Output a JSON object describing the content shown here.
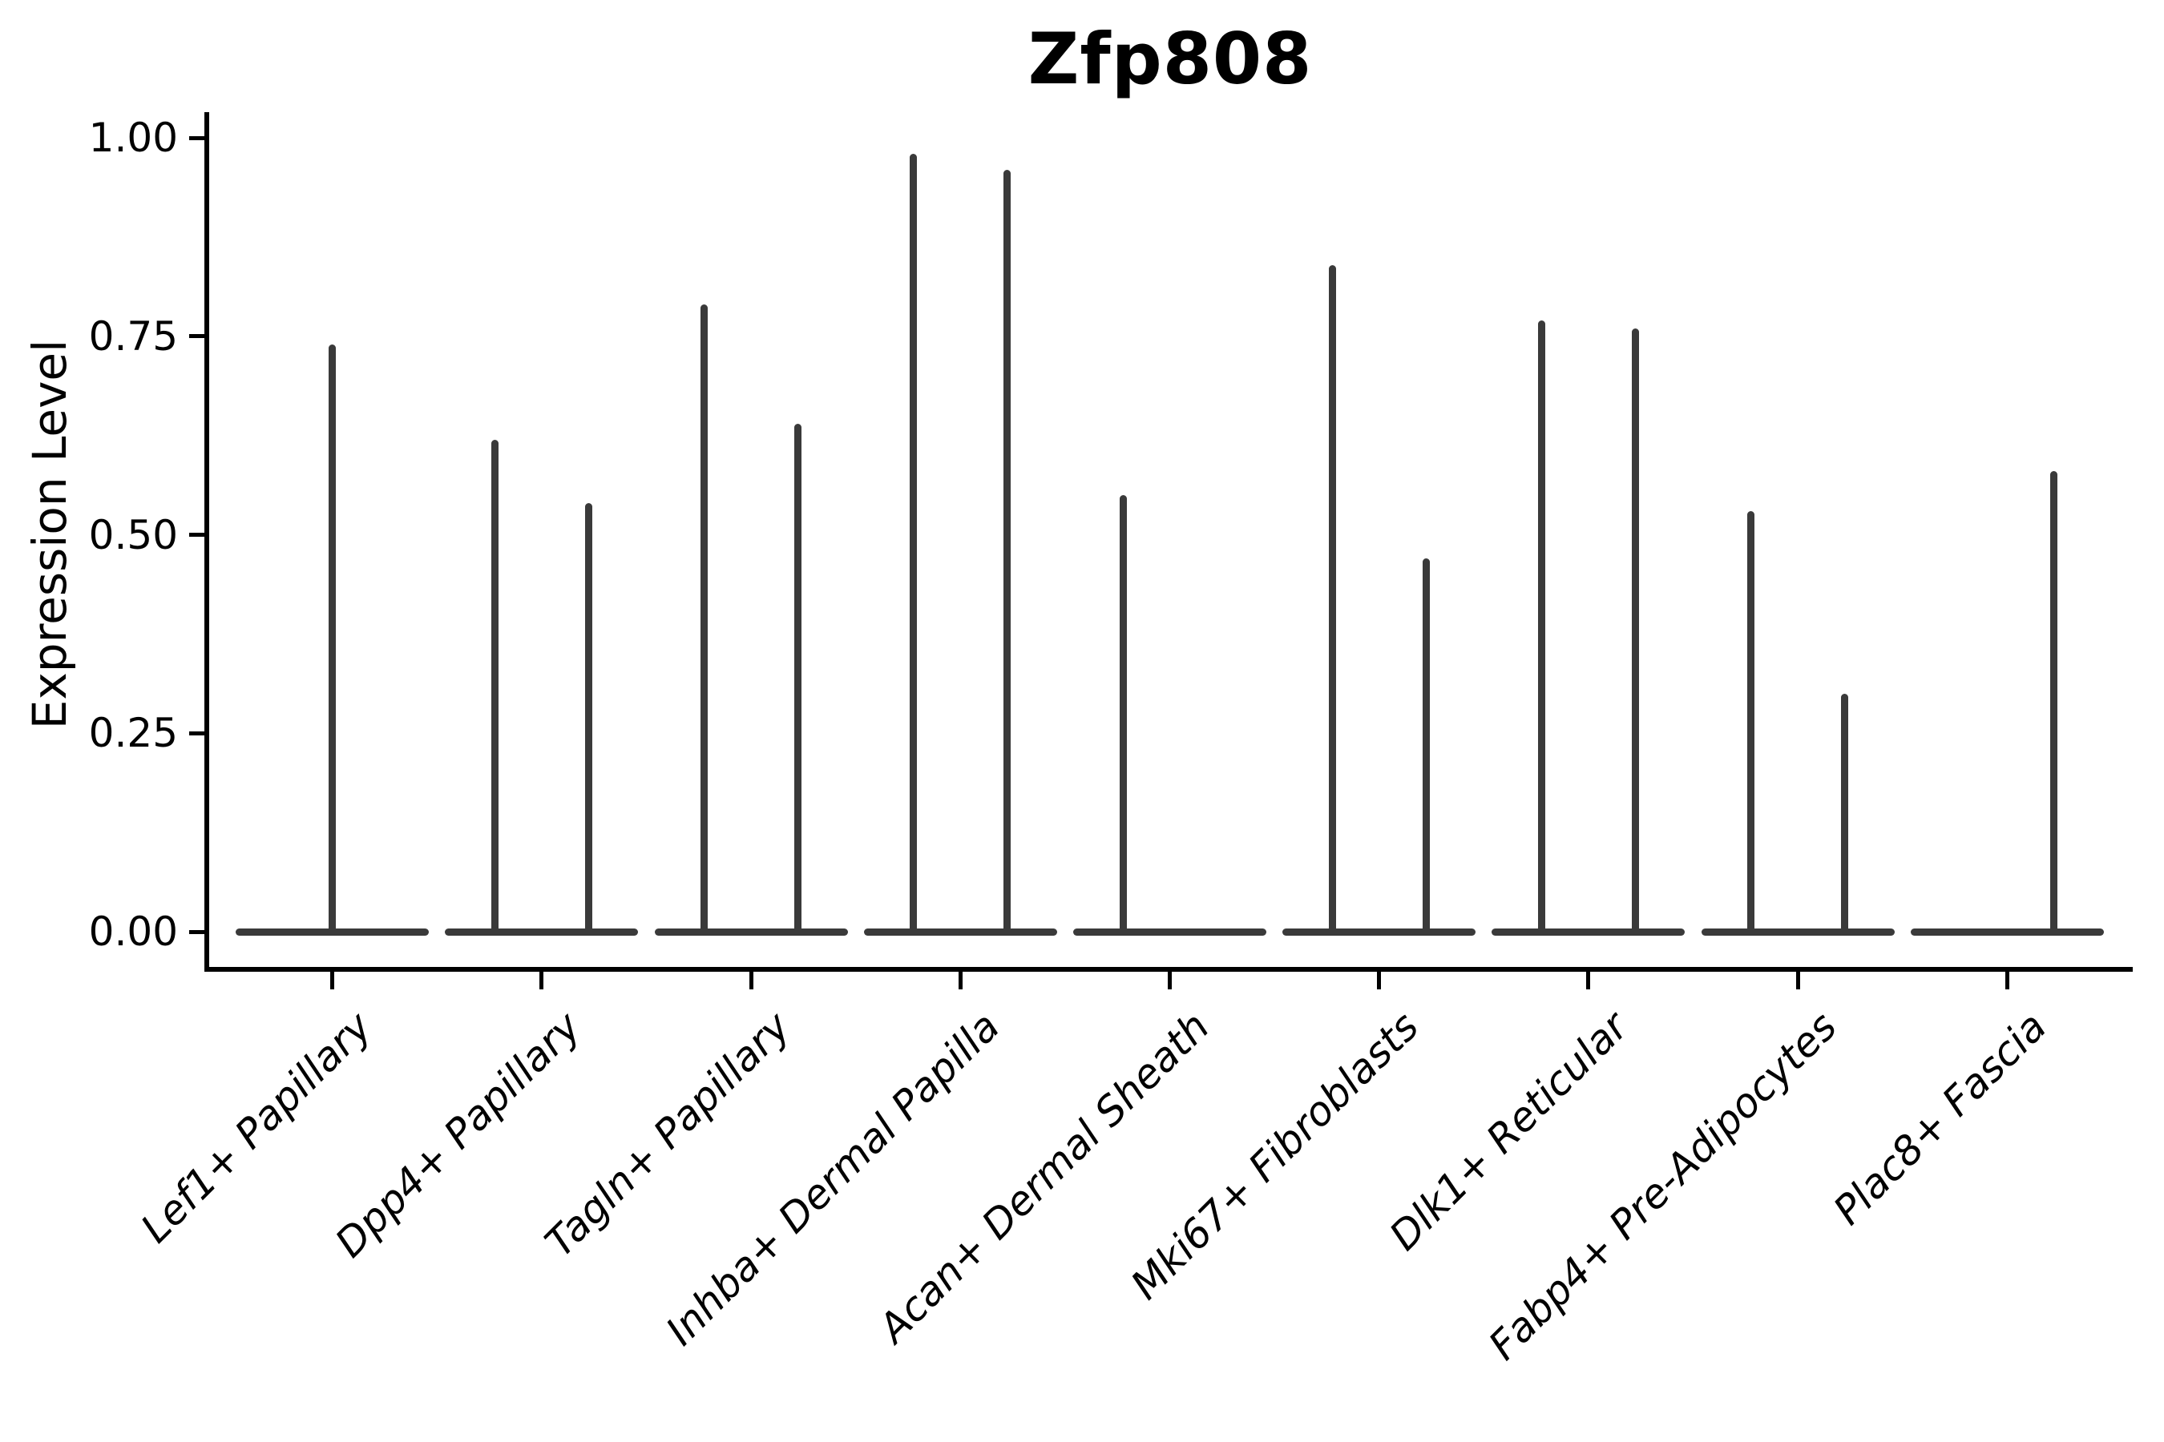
{
  "chart_data": {
    "type": "violin",
    "title": "Zfp808",
    "ylabel": "Expression Level",
    "xlabel": "",
    "ylim": [
      0,
      1.0
    ],
    "grid": false,
    "legend": null,
    "background_color": "#ffffff",
    "violin_color": "#3a3a3a",
    "axis_color": "#000000",
    "yticks": [
      {
        "value": 0.0,
        "label": "0.00"
      },
      {
        "value": 0.25,
        "label": "0.25"
      },
      {
        "value": 0.5,
        "label": "0.50"
      },
      {
        "value": 0.75,
        "label": "0.75"
      },
      {
        "value": 1.0,
        "label": "1.00"
      }
    ],
    "categories": [
      {
        "label": "Lef1+ Papillary",
        "spikes": [
          {
            "position": "center",
            "max_expression": 0.74
          }
        ]
      },
      {
        "label": "Dpp4+ Papillary",
        "spikes": [
          {
            "position": "left",
            "max_expression": 0.62
          },
          {
            "position": "right",
            "max_expression": 0.54
          }
        ]
      },
      {
        "label": "Tagln+ Papillary",
        "spikes": [
          {
            "position": "left",
            "max_expression": 0.79
          },
          {
            "position": "right",
            "max_expression": 0.64
          }
        ]
      },
      {
        "label": "Inhba+ Dermal Papilla",
        "spikes": [
          {
            "position": "left",
            "max_expression": 0.98
          },
          {
            "position": "right",
            "max_expression": 0.96
          }
        ]
      },
      {
        "label": "Acan+ Dermal Sheath",
        "spikes": [
          {
            "position": "left",
            "max_expression": 0.55
          }
        ]
      },
      {
        "label": "Mki67+ Fibroblasts",
        "spikes": [
          {
            "position": "left",
            "max_expression": 0.84
          },
          {
            "position": "right",
            "max_expression": 0.47
          }
        ]
      },
      {
        "label": "Dlk1+ Reticular",
        "spikes": [
          {
            "position": "left",
            "max_expression": 0.77
          },
          {
            "position": "right",
            "max_expression": 0.76
          }
        ]
      },
      {
        "label": "Fabp4+ Pre-Adipocytes",
        "spikes": [
          {
            "position": "left",
            "max_expression": 0.53
          },
          {
            "position": "right",
            "max_expression": 0.3
          }
        ]
      },
      {
        "label": "Plac8+ Fascia",
        "spikes": [
          {
            "position": "right",
            "max_expression": 0.58
          }
        ]
      }
    ]
  }
}
